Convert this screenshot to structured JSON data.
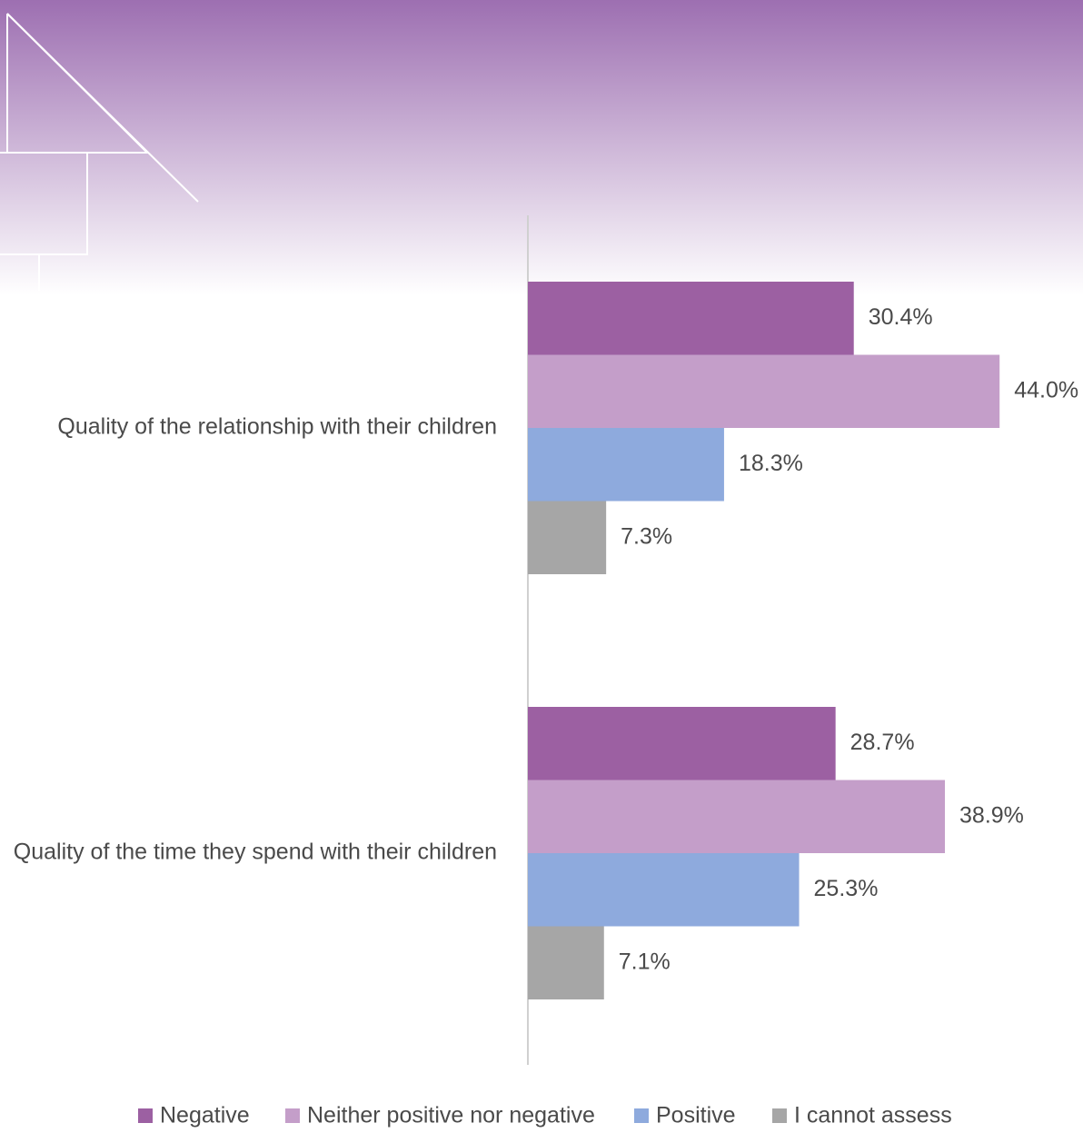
{
  "chart_data": {
    "type": "bar",
    "categories": [
      "Quality of the relationship with their children",
      "Quality of the time they spend with their children"
    ],
    "series": [
      {
        "name": "Negative",
        "color": "#9c60a2",
        "values": [
          30.4,
          28.7
        ],
        "value_labels": [
          "30.4%",
          "28.7%"
        ]
      },
      {
        "name": "Neither positive nor negative",
        "color": "#c49ec9",
        "values": [
          44.0,
          38.9
        ],
        "value_labels": [
          "44.0%",
          "38.9%"
        ]
      },
      {
        "name": "Positive",
        "color": "#8eaadd",
        "values": [
          18.3,
          25.3
        ],
        "value_labels": [
          "18.3%",
          "25.3%"
        ]
      },
      {
        "name": "I cannot assess",
        "color": "#a6a6a6",
        "values": [
          7.3,
          7.1
        ],
        "value_labels": [
          "7.3%",
          "7.1%"
        ]
      }
    ]
  }
}
